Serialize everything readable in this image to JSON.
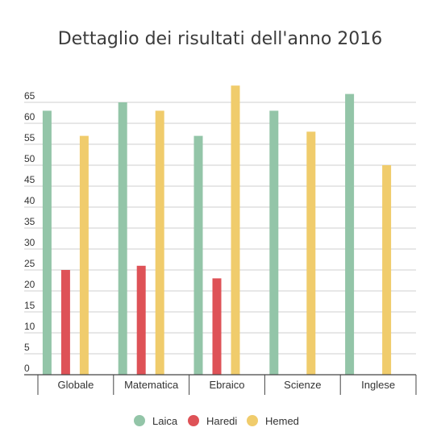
{
  "chart_data": {
    "type": "bar",
    "title": "Dettaglio dei risultati dell'anno 2016",
    "xlabel": "",
    "ylabel": "",
    "categories": [
      "Globale",
      "Matematica",
      "Ebraico",
      "Scienze",
      "Inglese"
    ],
    "series": [
      {
        "name": "Laica",
        "color": "#93c5a8",
        "values": [
          63,
          65,
          57,
          63,
          67
        ]
      },
      {
        "name": "Haredi",
        "color": "#de5257",
        "values": [
          25,
          26,
          23,
          null,
          null
        ]
      },
      {
        "name": "Hemed",
        "color": "#f0cc6c",
        "values": [
          57,
          63,
          69,
          58,
          50
        ]
      }
    ],
    "y_ticks": [
      0,
      5,
      10,
      15,
      20,
      25,
      30,
      35,
      40,
      45,
      50,
      55,
      60,
      65
    ],
    "ylim": [
      0,
      69
    ],
    "grid": true,
    "legend_position": "bottom"
  }
}
